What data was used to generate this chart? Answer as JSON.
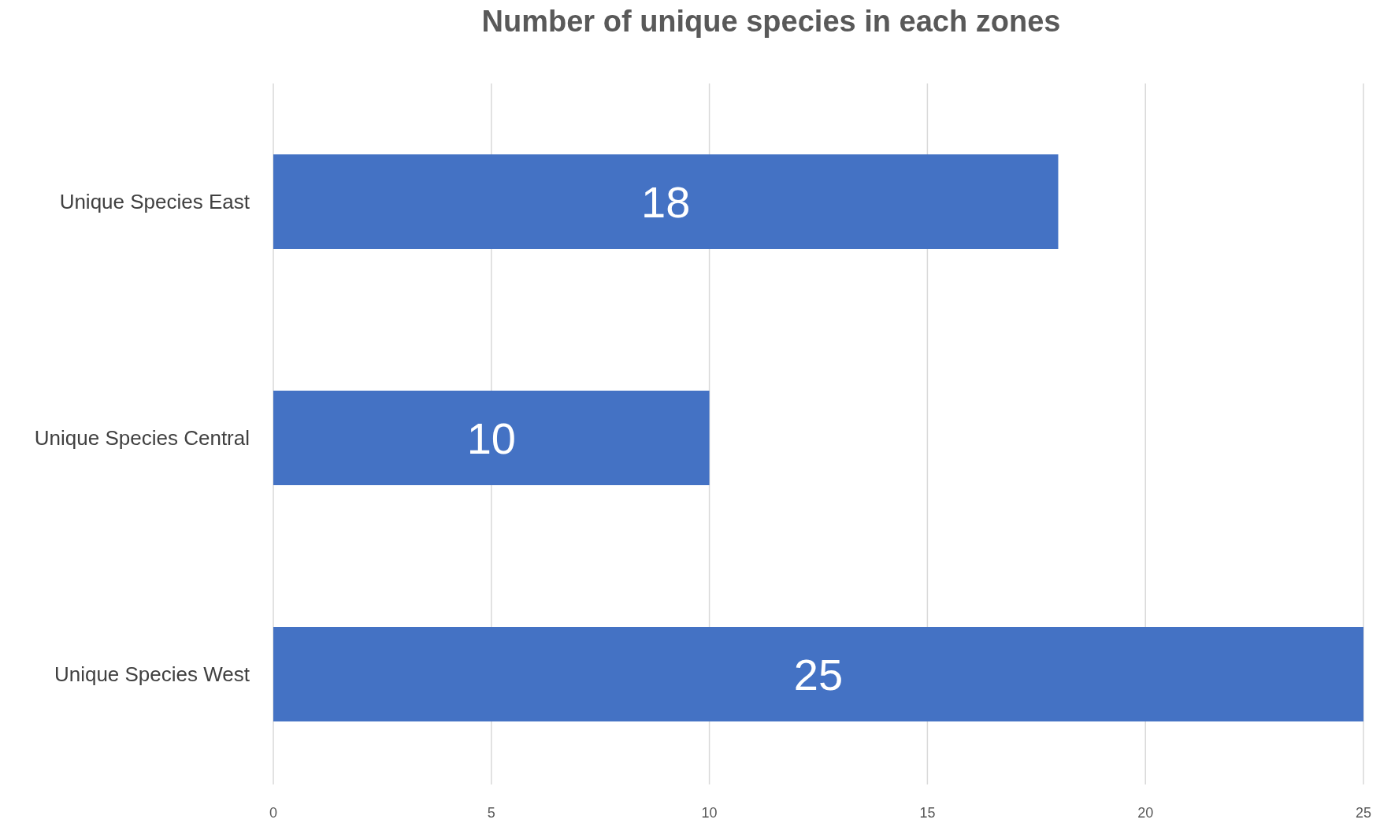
{
  "chart_data": {
    "type": "bar",
    "orientation": "horizontal",
    "title": "Number of unique species in each zones",
    "categories": [
      "Unique Species East",
      "Unique Species Central",
      "Unique Species West"
    ],
    "values": [
      18,
      10,
      25
    ],
    "color": "#4472c4",
    "xlim": [
      0,
      25
    ],
    "xticks": [
      0,
      5,
      10,
      15,
      20,
      25
    ],
    "grid": "x",
    "data_labels": true
  }
}
